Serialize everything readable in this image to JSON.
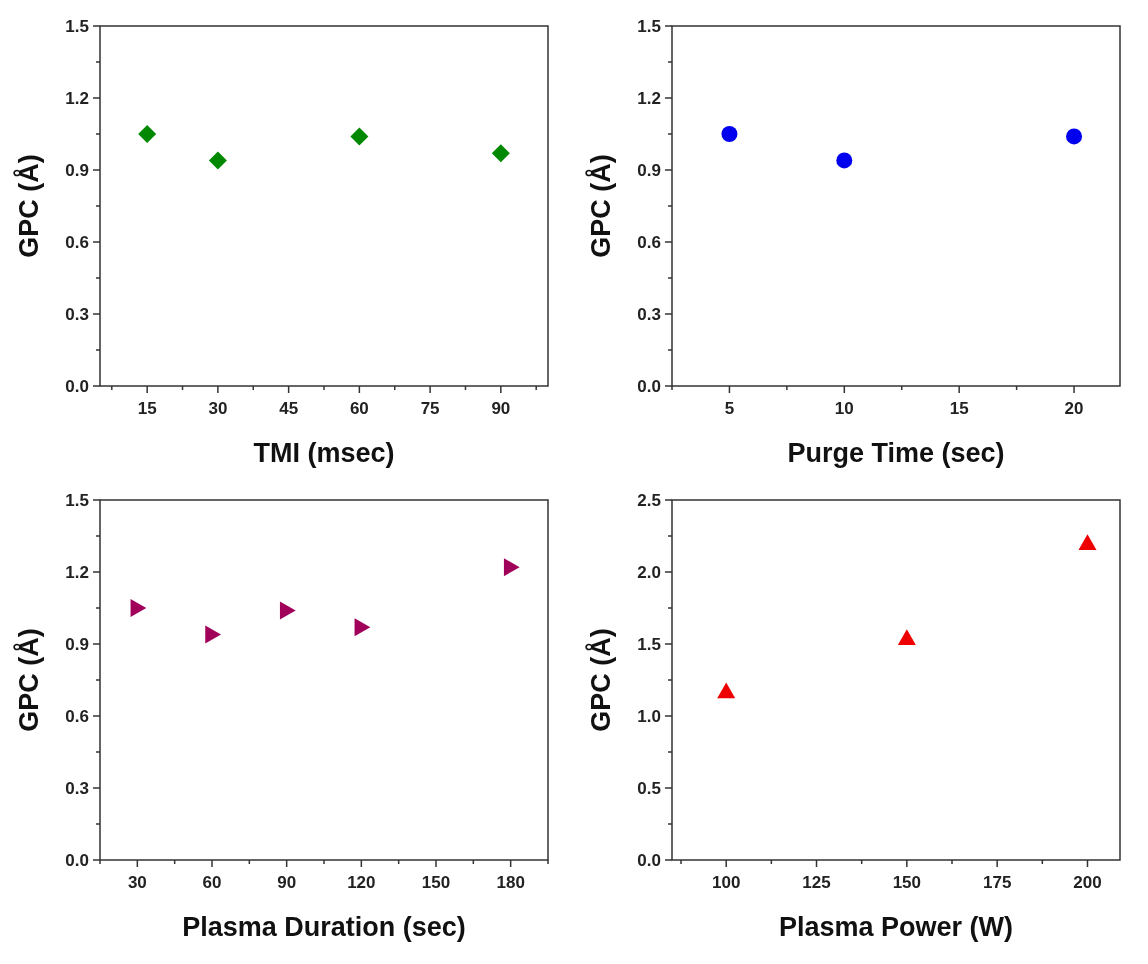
{
  "chart_data": [
    {
      "type": "scatter",
      "xlabel": "TMI (msec)",
      "ylabel": "GPC (Å)",
      "x": [
        15,
        30,
        60,
        90
      ],
      "values": [
        1.05,
        0.94,
        1.04,
        0.97
      ],
      "color": "#008800",
      "marker": "diamond",
      "xlim": [
        5,
        100
      ],
      "ylim": [
        0,
        1.5
      ],
      "xticks": [
        {
          "value": 7.5,
          "label": null
        },
        15,
        {
          "value": 22.5,
          "label": null
        },
        30,
        {
          "value": 37.5,
          "label": null
        },
        45,
        {
          "value": 52.5,
          "label": null
        },
        60,
        {
          "value": 67.5,
          "label": null
        },
        75,
        {
          "value": 82.5,
          "label": null
        },
        90,
        {
          "value": 97.5,
          "label": null
        }
      ],
      "yticks": [
        {
          "value": 0,
          "label": "0.0"
        },
        {
          "value": 0.15,
          "label": null
        },
        0.3,
        {
          "value": 0.45,
          "label": null
        },
        0.6,
        {
          "value": 0.75,
          "label": null
        },
        0.9,
        {
          "value": 1.05,
          "label": null
        },
        1.2,
        {
          "value": 1.35,
          "label": null
        },
        1.5
      ]
    },
    {
      "type": "scatter",
      "xlabel": "Purge Time (sec)",
      "ylabel": "GPC (Å)",
      "x": [
        5,
        10,
        20
      ],
      "values": [
        1.05,
        0.94,
        1.04
      ],
      "color": "#0000ee",
      "marker": "circle",
      "xlim": [
        2.5,
        22
      ],
      "ylim": [
        0,
        1.5
      ],
      "xticks": [
        {
          "value": 2.5,
          "label": null
        },
        5,
        {
          "value": 7.5,
          "label": null
        },
        10,
        {
          "value": 12.5,
          "label": null
        },
        15,
        {
          "value": 17.5,
          "label": null
        },
        20
      ],
      "yticks": [
        {
          "value": 0,
          "label": "0.0"
        },
        {
          "value": 0.15,
          "label": null
        },
        0.3,
        {
          "value": 0.45,
          "label": null
        },
        0.6,
        {
          "value": 0.75,
          "label": null
        },
        0.9,
        {
          "value": 1.05,
          "label": null
        },
        1.2,
        {
          "value": 1.35,
          "label": null
        },
        1.5
      ]
    },
    {
      "type": "scatter",
      "xlabel": "Plasma Duration (sec)",
      "ylabel": "GPC (Å)",
      "x": [
        30,
        60,
        90,
        120,
        180
      ],
      "values": [
        1.05,
        0.94,
        1.04,
        0.97,
        1.22
      ],
      "color": "#a0005a",
      "marker": "triangle-right",
      "xlim": [
        15,
        195
      ],
      "ylim": [
        0,
        1.5
      ],
      "xticks": [
        {
          "value": 15,
          "label": null
        },
        30,
        {
          "value": 45,
          "label": null
        },
        60,
        {
          "value": 75,
          "label": null
        },
        90,
        {
          "value": 105,
          "label": null
        },
        120,
        {
          "value": 135,
          "label": null
        },
        150,
        {
          "value": 165,
          "label": null
        },
        180,
        {
          "value": 195,
          "label": null
        }
      ],
      "yticks": [
        {
          "value": 0,
          "label": "0.0"
        },
        {
          "value": 0.15,
          "label": null
        },
        0.3,
        {
          "value": 0.45,
          "label": null
        },
        0.6,
        {
          "value": 0.75,
          "label": null
        },
        0.9,
        {
          "value": 1.05,
          "label": null
        },
        1.2,
        {
          "value": 1.35,
          "label": null
        },
        1.5
      ]
    },
    {
      "type": "scatter",
      "xlabel": "Plasma Power (W)",
      "ylabel": "GPC (Å)",
      "x": [
        100,
        150,
        200
      ],
      "values": [
        1.17,
        1.54,
        2.2
      ],
      "color": "#ee0000",
      "marker": "triangle",
      "xlim": [
        85,
        209
      ],
      "ylim": [
        0,
        2.5
      ],
      "xticks": [
        {
          "value": 87.5,
          "label": null
        },
        100,
        {
          "value": 112.5,
          "label": null
        },
        125,
        {
          "value": 137.5,
          "label": null
        },
        150,
        {
          "value": 162.5,
          "label": null
        },
        175,
        {
          "value": 187.5,
          "label": null
        },
        200
      ],
      "yticks": [
        {
          "value": 0,
          "label": "0.0"
        },
        {
          "value": 0.25,
          "label": null
        },
        {
          "value": 0.5,
          "label": "0.5"
        },
        {
          "value": 0.75,
          "label": null
        },
        {
          "value": 1,
          "label": "1.0"
        },
        {
          "value": 1.25,
          "label": null
        },
        {
          "value": 1.5,
          "label": "1.5"
        },
        {
          "value": 1.75,
          "label": null
        },
        {
          "value": 2,
          "label": "2.0"
        },
        {
          "value": 2.25,
          "label": null
        },
        {
          "value": 2.5,
          "label": "2.5"
        }
      ]
    }
  ]
}
